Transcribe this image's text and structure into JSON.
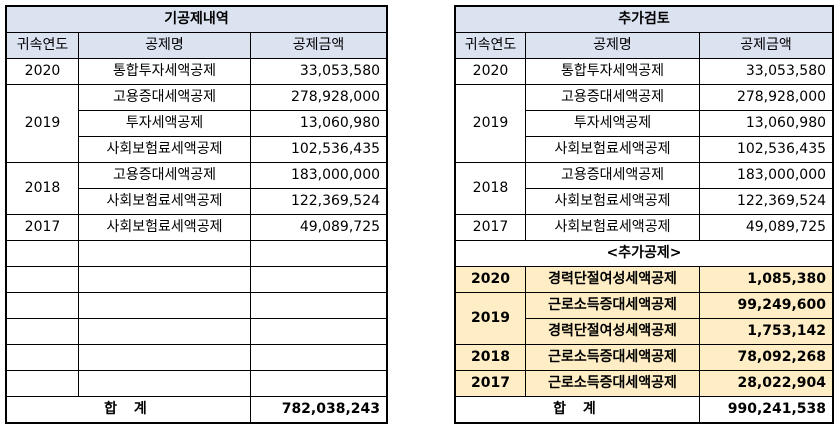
{
  "left": {
    "title": "기공제내역",
    "headers": [
      "귀속연도",
      "공제명",
      "공제금액"
    ],
    "rows": [
      {
        "year": "2020",
        "name": "통합투자세액공제",
        "amount": "33,053,580"
      },
      {
        "year": "2019",
        "name": "고용증대세액공제",
        "amount": "278,928,000"
      },
      {
        "name": "투자세액공제",
        "amount": "13,060,980"
      },
      {
        "name": "사회보험료세액공제",
        "amount": "102,536,435"
      },
      {
        "year": "2018",
        "name": "고용증대세액공제",
        "amount": "183,000,000"
      },
      {
        "name": "사회보험료세액공제",
        "amount": "122,369,524"
      },
      {
        "year": "2017",
        "name": "사회보험료세액공제",
        "amount": "49,089,725"
      }
    ],
    "total_label": "합 계",
    "total_amount": "782,038,243"
  },
  "right": {
    "title": "추가검토",
    "headers": [
      "귀속연도",
      "공제명",
      "공제금액"
    ],
    "rows": [
      {
        "year": "2020",
        "name": "통합투자세액공제",
        "amount": "33,053,580"
      },
      {
        "year": "2019",
        "name": "고용증대세액공제",
        "amount": "278,928,000"
      },
      {
        "name": "투자세액공제",
        "amount": "13,060,980"
      },
      {
        "name": "사회보험료세액공제",
        "amount": "102,536,435"
      },
      {
        "year": "2018",
        "name": "고용증대세액공제",
        "amount": "183,000,000"
      },
      {
        "name": "사회보험료세액공제",
        "amount": "122,369,524"
      },
      {
        "year": "2017",
        "name": "사회보험료세액공제",
        "amount": "49,089,725"
      }
    ],
    "additional_label": "<추가공제>",
    "additional": [
      {
        "year": "2020",
        "name": "경력단절여성세액공제",
        "amount": "1,085,380"
      },
      {
        "year": "2019",
        "name": "근로소득증대세액공제",
        "amount": "99,249,600"
      },
      {
        "name": "경력단절여성세액공제",
        "amount": "1,753,142"
      },
      {
        "year": "2018",
        "name": "근로소득증대세액공제",
        "amount": "78,092,268"
      },
      {
        "year": "2017",
        "name": "근로소득증대세액공제",
        "amount": "28,022,904"
      }
    ],
    "total_label": "합 계",
    "total_amount": "990,241,538"
  }
}
